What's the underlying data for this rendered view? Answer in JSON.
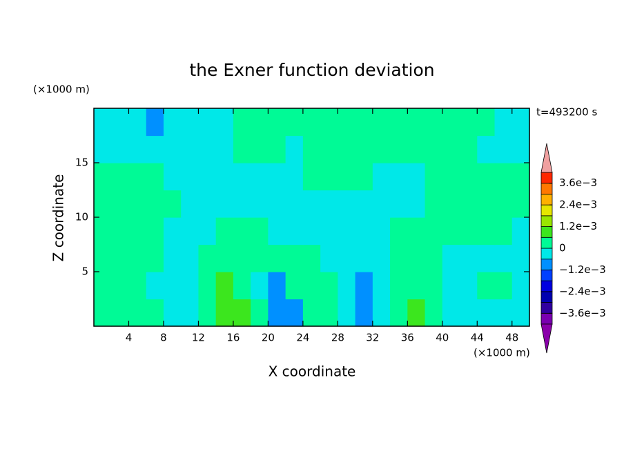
{
  "chart_data": {
    "type": "contour",
    "title": "the Exner function deviation",
    "x_label": "X coordinate",
    "y_label": "Z coordinate",
    "x_unit": "(×1000 m)",
    "y_unit": "(×1000 m)",
    "time_label": "t=493200 s",
    "xlim": [
      0,
      50
    ],
    "ylim": [
      0,
      20
    ],
    "xticks": [
      4,
      8,
      12,
      16,
      20,
      24,
      28,
      32,
      36,
      40,
      44,
      48
    ],
    "yticks": [
      5,
      10,
      15
    ],
    "x": [
      1,
      3,
      5,
      7,
      9,
      11,
      13,
      15,
      17,
      19,
      21,
      23,
      25,
      27,
      29,
      31,
      33,
      35,
      37,
      39,
      41,
      43,
      45,
      47,
      49
    ],
    "y": [
      1.25,
      3.75,
      6.25,
      8.75,
      11.25,
      13.75,
      16.25,
      18.75
    ],
    "z": [
      [
        0.0003,
        0.0003,
        0.0003,
        0.0003,
        -0.0003,
        -0.0003,
        0.0003,
        0.0009,
        0.0009,
        0.0003,
        -0.0009,
        -0.0009,
        0.0003,
        0.0003,
        -0.0003,
        -0.0009,
        -0.0003,
        0.0003,
        0.0009,
        0.0003,
        -0.0003,
        -0.0003,
        -0.0003,
        -0.0003,
        -0.0003
      ],
      [
        0.0003,
        0.0003,
        0.0003,
        -0.0003,
        -0.0003,
        -0.0003,
        0.0003,
        0.0009,
        0.0003,
        -0.0003,
        -0.0009,
        0.0003,
        0.0003,
        0.0003,
        -0.0003,
        -0.0009,
        -0.0003,
        0.0003,
        0.0003,
        0.0003,
        -0.0003,
        -0.0003,
        0.0003,
        0.0003,
        -0.0003
      ],
      [
        0.0003,
        0.0003,
        0.0003,
        0.0003,
        -0.0003,
        -0.0003,
        0.0003,
        0.0003,
        0.0003,
        0.0003,
        0.0003,
        0.0003,
        0.0003,
        -0.0003,
        -0.0003,
        -0.0003,
        -0.0003,
        0.0003,
        0.0003,
        0.0003,
        -0.0003,
        -0.0003,
        -0.0003,
        -0.0003,
        -0.0003
      ],
      [
        0.0003,
        0.0003,
        0.0003,
        0.0003,
        -0.0003,
        -0.0003,
        -0.0003,
        0.0003,
        0.0003,
        0.0003,
        -0.0003,
        -0.0003,
        -0.0003,
        -0.0003,
        -0.0003,
        -0.0003,
        -0.0003,
        0.0003,
        0.0003,
        0.0003,
        0.0003,
        0.0003,
        0.0003,
        0.0003,
        -0.0003
      ],
      [
        0.0003,
        0.0003,
        0.0003,
        0.0003,
        0.0003,
        -0.0003,
        -0.0003,
        -0.0003,
        -0.0003,
        -0.0003,
        -0.0003,
        -0.0003,
        -0.0003,
        -0.0003,
        -0.0003,
        -0.0003,
        -0.0003,
        -0.0003,
        -0.0003,
        0.0003,
        0.0003,
        0.0003,
        0.0003,
        0.0003,
        0.0003
      ],
      [
        0.0003,
        0.0003,
        0.0003,
        0.0003,
        -0.0003,
        -0.0003,
        -0.0003,
        -0.0003,
        -0.0003,
        -0.0003,
        -0.0003,
        -0.0003,
        0.0003,
        0.0003,
        0.0003,
        0.0003,
        -0.0003,
        -0.0003,
        -0.0003,
        0.0003,
        0.0003,
        0.0003,
        0.0003,
        0.0003,
        0.0003
      ],
      [
        -0.0003,
        -0.0003,
        -0.0003,
        -0.0003,
        -0.0003,
        -0.0003,
        -0.0003,
        -0.0003,
        0.0003,
        0.0003,
        0.0003,
        -0.0003,
        0.0003,
        0.0003,
        0.0003,
        0.0003,
        0.0003,
        0.0003,
        0.0003,
        0.0003,
        0.0003,
        0.0003,
        -0.0003,
        -0.0003,
        -0.0003
      ],
      [
        -0.0003,
        -0.0003,
        -0.0003,
        -0.0009,
        -0.0003,
        -0.0003,
        -0.0003,
        -0.0003,
        0.0003,
        0.0003,
        0.0003,
        0.0003,
        0.0003,
        0.0003,
        0.0003,
        0.0003,
        0.0003,
        0.0003,
        0.0003,
        0.0003,
        0.0003,
        0.0003,
        0.0003,
        -0.0003,
        -0.0003
      ]
    ],
    "levels": [
      -0.0042,
      -0.0036,
      -0.003,
      -0.0024,
      -0.0018,
      -0.0012,
      -0.0006,
      0,
      0.0006,
      0.0012,
      0.0018,
      0.0024,
      0.003,
      0.0036,
      0.0042
    ],
    "colors": [
      "#7a00b0",
      "#3000a0",
      "#0000b0",
      "#0000e0",
      "#0040ff",
      "#0090ff",
      "#00e8e8",
      "#00fa96",
      "#3ce61e",
      "#9ae600",
      "#e6e600",
      "#ffb000",
      "#ff7800",
      "#ff2800"
    ],
    "under_color": "#8a00aa",
    "over_color": "#f0a0a0",
    "colorbar_ticks": [
      {
        "value": -0.0036,
        "label": "−3.6e−3"
      },
      {
        "value": -0.0024,
        "label": "−2.4e−3"
      },
      {
        "value": -0.0012,
        "label": "−1.2e−3"
      },
      0,
      {
        "value": 0.0012,
        "label": "1.2e−3"
      },
      {
        "value": 0.0024,
        "label": "2.4e−3"
      },
      {
        "value": 0.0036,
        "label": "3.6e−3"
      }
    ]
  }
}
